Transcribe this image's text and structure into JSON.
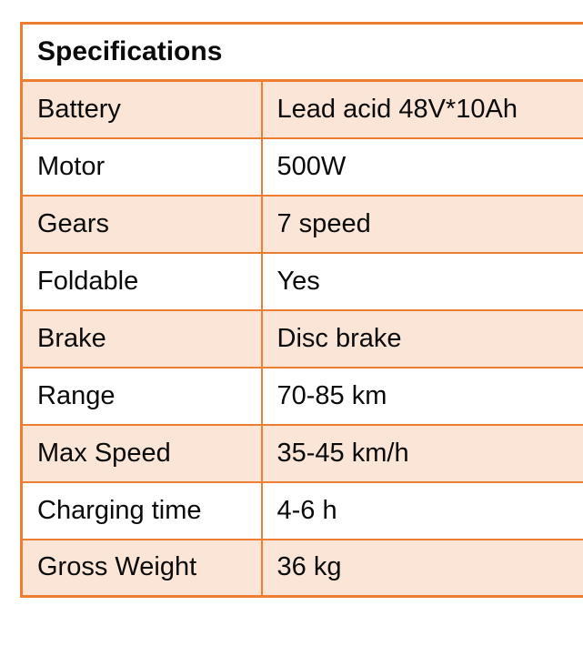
{
  "spec_table": {
    "title": "Specifications",
    "columns": [
      "label",
      "value"
    ],
    "rows": [
      {
        "label": "Battery",
        "value": "Lead acid 48V*10Ah"
      },
      {
        "label": "Motor",
        "value": "500W"
      },
      {
        "label": "Gears",
        "value": "7 speed"
      },
      {
        "label": "Foldable",
        "value": "Yes"
      },
      {
        "label": "Brake",
        "value": "Disc brake"
      },
      {
        "label": "Range",
        "value": "70-85 km"
      },
      {
        "label": "Max Speed",
        "value": "35-45 km/h"
      },
      {
        "label": "Charging time",
        "value": "4-6 h"
      },
      {
        "label": "Gross Weight",
        "value": "36 kg"
      }
    ],
    "colors": {
      "border": "#ED7D31",
      "stripe": "#FBE5D6",
      "row_white": "#FFFFFF",
      "text": "#0A0A0A"
    }
  }
}
